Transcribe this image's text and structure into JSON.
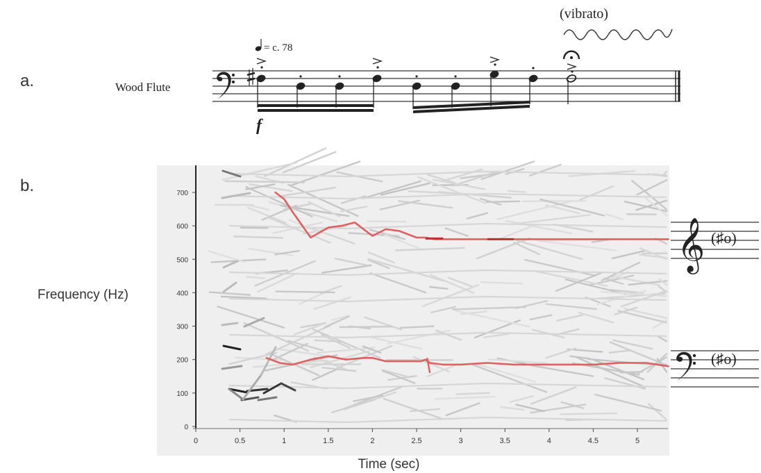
{
  "panel_a": {
    "label": "a.",
    "instrument": "Wood Flute",
    "tempo_text": "= c. 78",
    "dynamic": "f",
    "vibrato_text": "(vibrato)"
  },
  "panel_b": {
    "label": "b."
  },
  "chart_data": {
    "type": "line",
    "title": "",
    "xlabel": "Time (sec)",
    "ylabel": "Frequency (Hz)",
    "xlim": [
      0,
      5.35
    ],
    "ylim": [
      0,
      750
    ],
    "xticks": [
      0,
      0.5,
      1,
      1.5,
      2,
      2.5,
      3,
      3.5,
      4,
      4.5,
      5
    ],
    "xtick_labels": [
      "0",
      "0.5",
      "1",
      "1.5",
      "2",
      "2.5",
      "3",
      "3.5",
      "4",
      "4.5",
      "5"
    ],
    "yticks": [
      0,
      100,
      200,
      300,
      400,
      500,
      600,
      700
    ],
    "ytick_labels": [
      "0",
      "100",
      "200",
      "300",
      "400",
      "500",
      "600",
      "700"
    ],
    "grid": false,
    "background": "#efefef",
    "series": [
      {
        "color": "#e06060",
        "x": [
          0.9,
          1.0,
          1.1,
          1.3,
          1.5,
          1.65,
          1.8,
          1.95,
          2.0,
          2.15,
          2.3,
          2.5,
          2.6,
          2.7,
          2.9,
          3.1,
          3.3,
          3.5,
          3.6,
          3.9,
          4.2,
          4.5,
          4.8,
          5.1,
          5.35
        ],
        "y": [
          700,
          680,
          640,
          565,
          595,
          600,
          610,
          580,
          570,
          590,
          585,
          565,
          565,
          560,
          560,
          560,
          560,
          560,
          560,
          560,
          560,
          560,
          560,
          560,
          560
        ]
      },
      {
        "color": "#e06060",
        "x": [
          0.8,
          0.95,
          1.1,
          1.3,
          1.5,
          1.7,
          1.9,
          2.0,
          2.15,
          2.35,
          2.55,
          2.6,
          2.65,
          2.8,
          3.0,
          3.3,
          3.6,
          3.9,
          4.2,
          4.5,
          4.8,
          5.1,
          5.35
        ],
        "y": [
          205,
          190,
          185,
          200,
          210,
          200,
          205,
          205,
          195,
          195,
          195,
          200,
          190,
          185,
          185,
          190,
          185,
          185,
          185,
          185,
          190,
          190,
          180
        ]
      }
    ],
    "side_notation": [
      {
        "clef": "treble",
        "text": "(♯o)"
      },
      {
        "clef": "bass",
        "text": "(♯o)"
      }
    ]
  }
}
